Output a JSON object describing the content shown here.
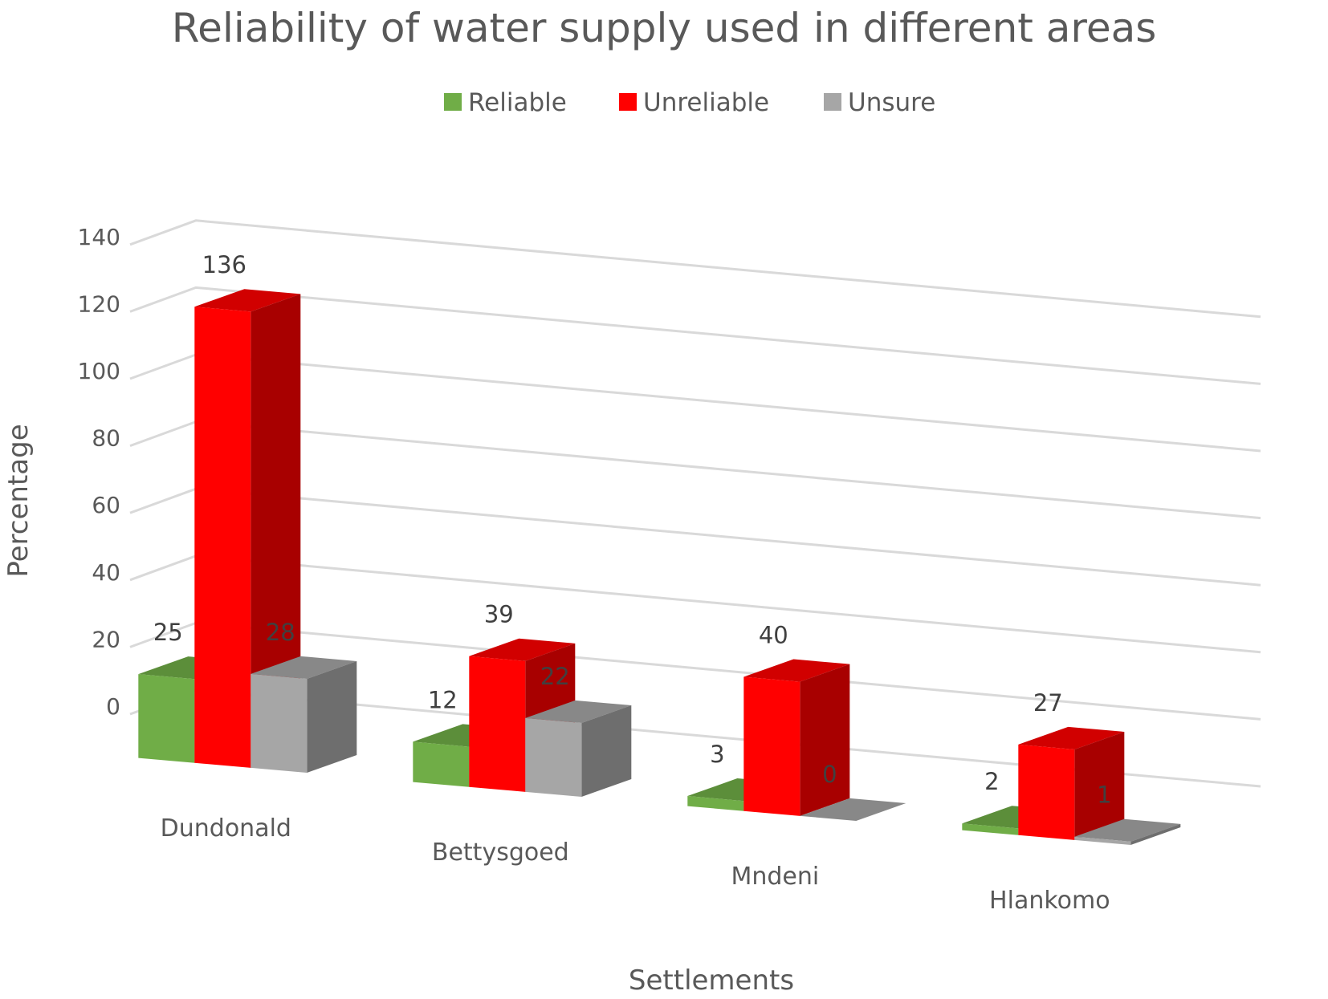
{
  "chart_data": {
    "type": "bar",
    "title": "Reliability of water supply used in different areas",
    "xlabel": "Settlements",
    "ylabel": "Percentage",
    "categories": [
      "Dundonald",
      "Bettysgoed",
      "Mndeni",
      "Hlankomo"
    ],
    "series": [
      {
        "name": "Reliable",
        "values": [
          25,
          12,
          3,
          2
        ],
        "color": "#70ad47"
      },
      {
        "name": "Unreliable",
        "values": [
          136,
          39,
          40,
          27
        ],
        "color": "#ff0000"
      },
      {
        "name": "Unsure",
        "values": [
          28,
          22,
          0,
          1
        ],
        "color": "#a6a6a6"
      }
    ],
    "ylim": [
      0,
      140
    ],
    "yticks": [
      0,
      20,
      40,
      60,
      80,
      100,
      120,
      140
    ],
    "grid": true,
    "legend_position": "top",
    "style": "3d-clustered-column"
  }
}
